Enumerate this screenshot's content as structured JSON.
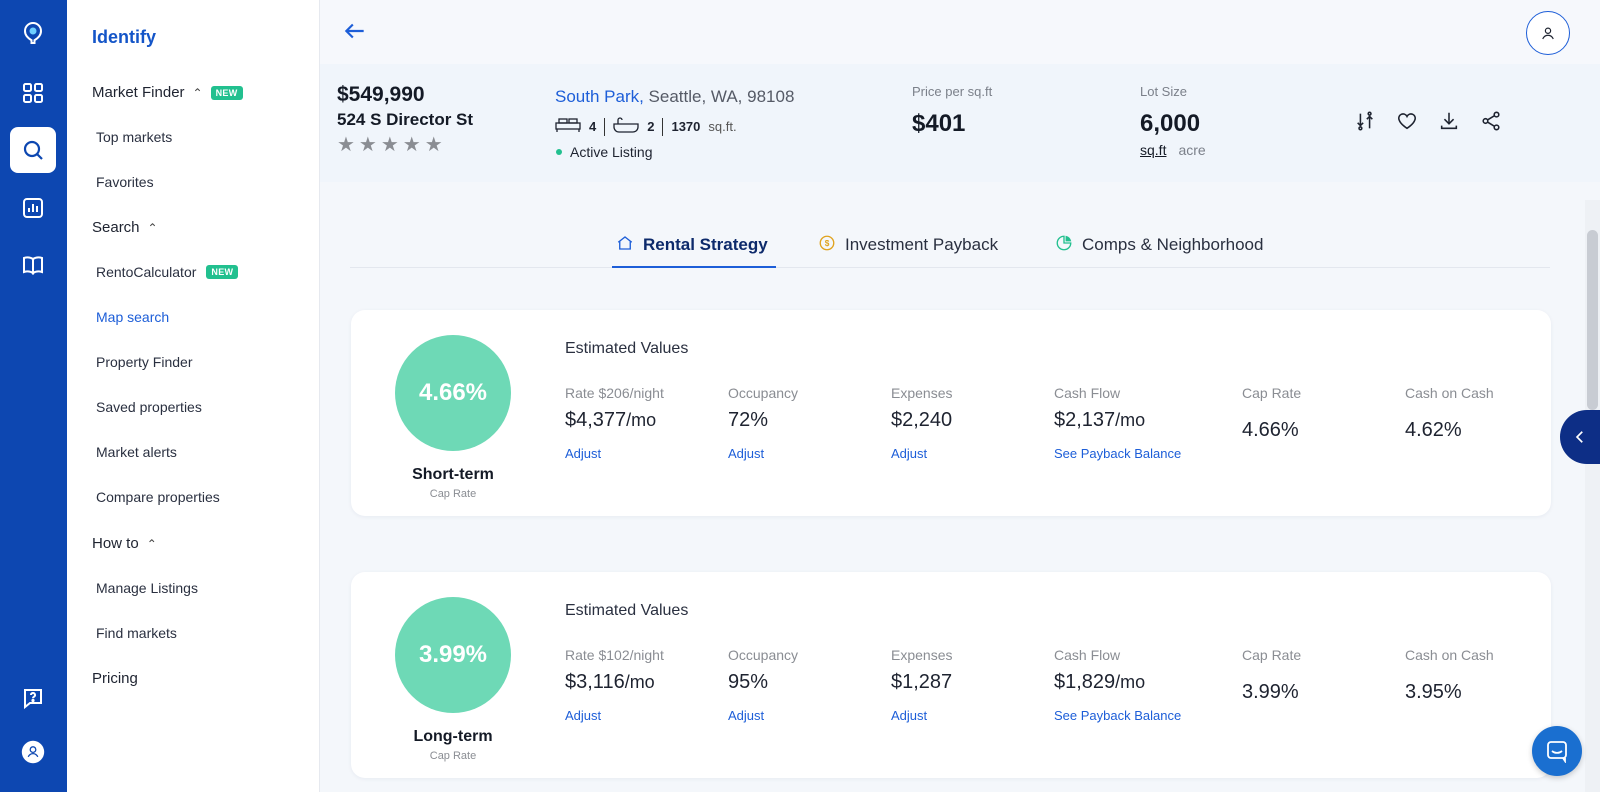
{
  "app": {
    "brand": "Identify"
  },
  "sidebar": {
    "market_finder": {
      "label": "Market Finder",
      "badge": "NEW"
    },
    "market_items": [
      {
        "label": "Top markets"
      },
      {
        "label": "Favorites"
      }
    ],
    "search": {
      "label": "Search"
    },
    "search_items": [
      {
        "label": "RentoCalculator",
        "badge": "NEW"
      },
      {
        "label": "Map search"
      },
      {
        "label": "Property Finder"
      },
      {
        "label": "Saved properties"
      },
      {
        "label": "Market alerts"
      },
      {
        "label": "Compare properties"
      }
    ],
    "how_to": {
      "label": "How to"
    },
    "howto_items": [
      {
        "label": "Manage Listings"
      },
      {
        "label": "Find markets"
      }
    ],
    "pricing": {
      "label": "Pricing"
    }
  },
  "property": {
    "price": "$549,990",
    "address": "524 S Director St",
    "rating": "★★★★★",
    "neighborhood": "South Park,",
    "city": " Seattle, WA, 98108",
    "beds": "4",
    "baths": "2",
    "sqft": "1370",
    "sqft_unit": "sq.ft.",
    "status": "Active Listing",
    "price_per_sqft_label": "Price per sq.ft",
    "price_per_sqft": "$401",
    "lot_label": "Lot Size",
    "lot_value": "6,000",
    "lot_unit_primary": "sq.ft",
    "lot_unit_secondary": "acre"
  },
  "tabs": [
    {
      "label": "Rental Strategy",
      "active": true
    },
    {
      "label": "Investment Payback"
    },
    {
      "label": "Comps & Neighborhood"
    }
  ],
  "strategies": [
    {
      "cap_rate": "4.66%",
      "term": "Short-term",
      "term_sub": "Cap Rate",
      "heading": "Estimated Values",
      "rate_label": "Rate $206/night",
      "rate_value": "$4,377",
      "per_month": "/mo",
      "occupancy_label": "Occupancy",
      "occupancy_value": "72%",
      "expenses_label": "Expenses",
      "expenses_value": "$2,240",
      "cashflow_label": "Cash Flow",
      "cashflow_value": "$2,137",
      "caprate_label": "Cap Rate",
      "caprate_value": "4.66%",
      "coc_label": "Cash on Cash",
      "coc_value": "4.62%",
      "adjust": "Adjust",
      "payback_link": "See Payback Balance"
    },
    {
      "cap_rate": "3.99%",
      "term": "Long-term",
      "term_sub": "Cap Rate",
      "heading": "Estimated Values",
      "rate_label": "Rate $102/night",
      "rate_value": "$3,116",
      "per_month": "/mo",
      "occupancy_label": "Occupancy",
      "occupancy_value": "95%",
      "expenses_label": "Expenses",
      "expenses_value": "$1,287",
      "cashflow_label": "Cash Flow",
      "cashflow_value": "$1,829",
      "caprate_label": "Cap Rate",
      "caprate_value": "3.99%",
      "coc_label": "Cash on Cash",
      "coc_value": "3.95%",
      "adjust": "Adjust",
      "payback_link": "See Payback Balance"
    }
  ],
  "colors": {
    "rail": "#0d47b1",
    "accent": "#1d5ed8",
    "cap_circle": "#6ed9b6",
    "new_badge": "#22c08f",
    "drawer": "#0d2e86"
  },
  "icons": {
    "rail": [
      "logo-pin-icon",
      "grid-icon",
      "search-icon",
      "chart-icon",
      "book-icon",
      "help-icon",
      "user-icon"
    ],
    "actions": [
      "compare-icon",
      "heart-icon",
      "download-icon",
      "share-icon"
    ],
    "tabs": [
      "home-icon",
      "coin-icon",
      "pie-chart-icon"
    ]
  }
}
